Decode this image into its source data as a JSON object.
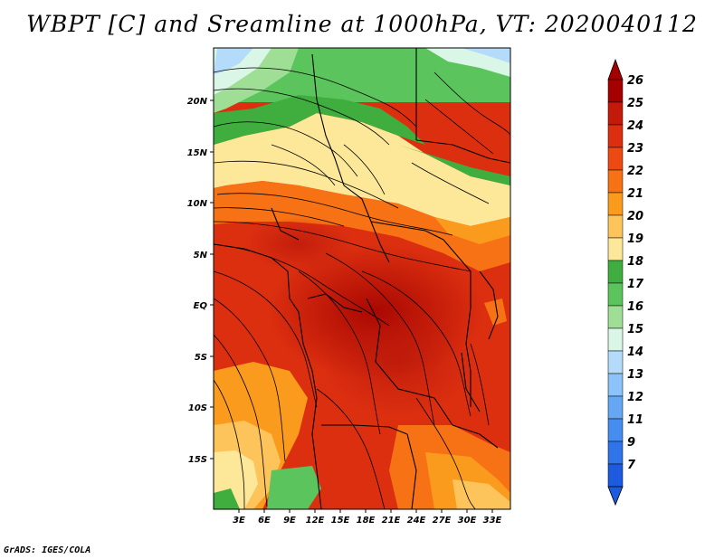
{
  "title": "WBPT [C] and Sreamline at 1000hPa, VT: 2020040112",
  "credit": "GrADS: IGES/COLA",
  "map": {
    "lon_ticks": [
      "3E",
      "6E",
      "9E",
      "12E",
      "15E",
      "18E",
      "21E",
      "24E",
      "27E",
      "30E",
      "33E"
    ],
    "lat_ticks": [
      "20N",
      "15N",
      "10N",
      "5N",
      "EQ",
      "5S",
      "10S",
      "15S"
    ]
  },
  "colorbar": {
    "levels": [
      {
        "label": "26",
        "color": "#a50000"
      },
      {
        "label": "25",
        "color": "#c41a0a"
      },
      {
        "label": "24",
        "color": "#dc2f10"
      },
      {
        "label": "23",
        "color": "#ec4a12"
      },
      {
        "label": "22",
        "color": "#f77214"
      },
      {
        "label": "21",
        "color": "#fb9b1e"
      },
      {
        "label": "20",
        "color": "#fcc45a"
      },
      {
        "label": "19",
        "color": "#fde89a"
      },
      {
        "label": "18",
        "color": "#3fae3f"
      },
      {
        "label": "17",
        "color": "#5cc45c"
      },
      {
        "label": "16",
        "color": "#9ede95"
      },
      {
        "label": "15",
        "color": "#daf6e6"
      },
      {
        "label": "14",
        "color": "#b4dcfa"
      },
      {
        "label": "13",
        "color": "#8cc3f8"
      },
      {
        "label": "12",
        "color": "#64a8f4"
      },
      {
        "label": "11",
        "color": "#468df0"
      },
      {
        "label": "9",
        "color": "#2f74e8"
      },
      {
        "label": "7",
        "color": "#1c5ae0"
      }
    ],
    "top_arrow_color": "#a50000",
    "bottom_arrow_color": "#1c5ae0"
  }
}
